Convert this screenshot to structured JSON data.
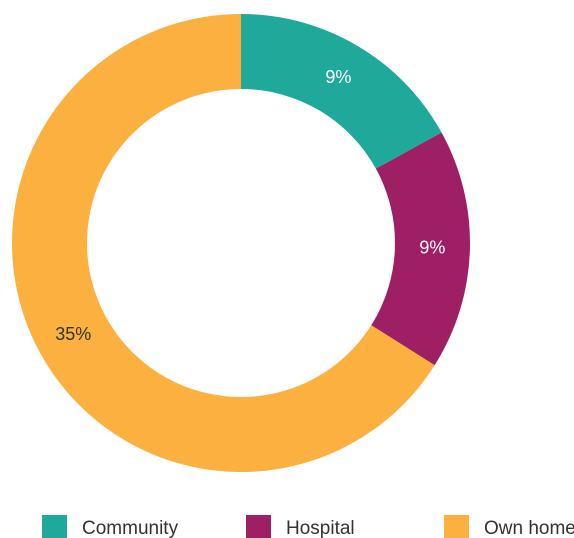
{
  "chart_data": {
    "type": "donut",
    "categories": [
      "Community",
      "Hospital",
      "Own home"
    ],
    "values": [
      9,
      9,
      35
    ],
    "value_labels": [
      "9%",
      "9%",
      "35%"
    ],
    "colors": [
      "#1fa99b",
      "#9e1f63",
      "#fbb040"
    ],
    "label_colors": [
      "#ffffff",
      "#ffffff",
      "#333333"
    ],
    "legend": "bottom"
  }
}
